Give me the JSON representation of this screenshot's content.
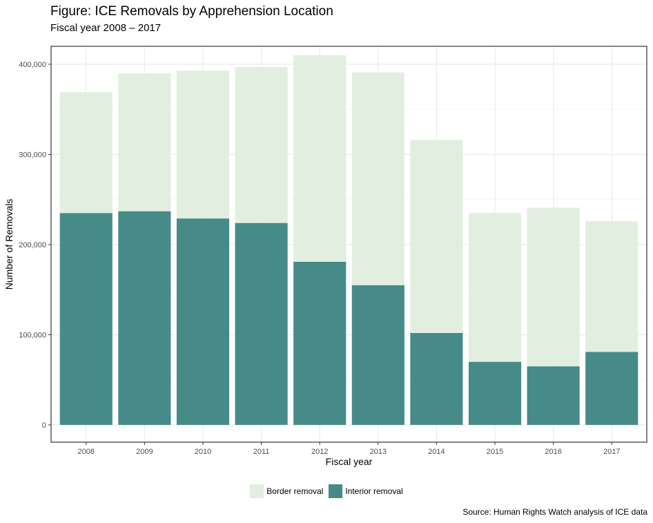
{
  "title": "Figure: ICE Removals by Apprehension Location",
  "subtitle": "Fiscal year 2008 – 2017",
  "source": "Source: Human Rights Watch analysis of ICE data",
  "chart_data": {
    "type": "bar",
    "stacked": true,
    "xlabel": "Fiscal year",
    "ylabel": "Number of Removals",
    "ylim": [
      0,
      420000
    ],
    "yticks": [
      0,
      100000,
      200000,
      300000,
      400000
    ],
    "ytick_labels": [
      "0",
      "100,000",
      "200,000",
      "300,000",
      "400,000"
    ],
    "categories": [
      "2008",
      "2009",
      "2010",
      "2011",
      "2012",
      "2013",
      "2014",
      "2015",
      "2016",
      "2017"
    ],
    "series": [
      {
        "name": "Interior removal",
        "color": "#468b88",
        "values": [
          235000,
          237000,
          229000,
          224000,
          181000,
          155000,
          102000,
          70000,
          65000,
          81000
        ]
      },
      {
        "name": "Border removal",
        "color": "#e2efe0",
        "values": [
          134000,
          153000,
          164000,
          173000,
          229000,
          236000,
          214000,
          165000,
          176000,
          145000
        ]
      }
    ],
    "legend_order": [
      "Border removal",
      "Interior removal"
    ],
    "legend_position": "bottom",
    "grid": true
  }
}
